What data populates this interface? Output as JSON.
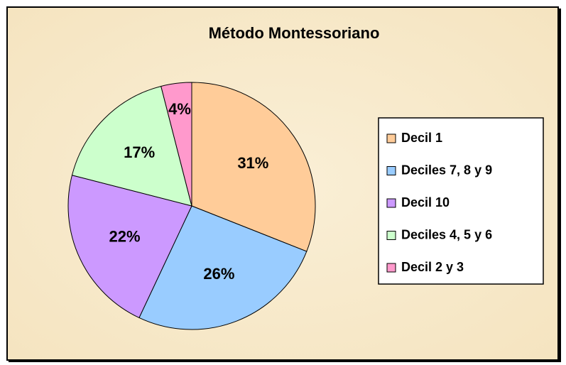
{
  "chart_data": {
    "type": "pie",
    "title": "Método Montessoriano",
    "categories": [
      "Decil 1",
      "Deciles 7, 8 y 9",
      "Decil 10",
      "Deciles 4, 5 y 6",
      "Decil 2 y 3"
    ],
    "values": [
      31,
      26,
      22,
      17,
      4
    ],
    "value_labels": [
      "31%",
      "26%",
      "22%",
      "17%",
      "4%"
    ],
    "colors": [
      "#ffcc99",
      "#99ccff",
      "#cc99ff",
      "#ccffcc",
      "#ff99cc"
    ],
    "legend": "right"
  }
}
